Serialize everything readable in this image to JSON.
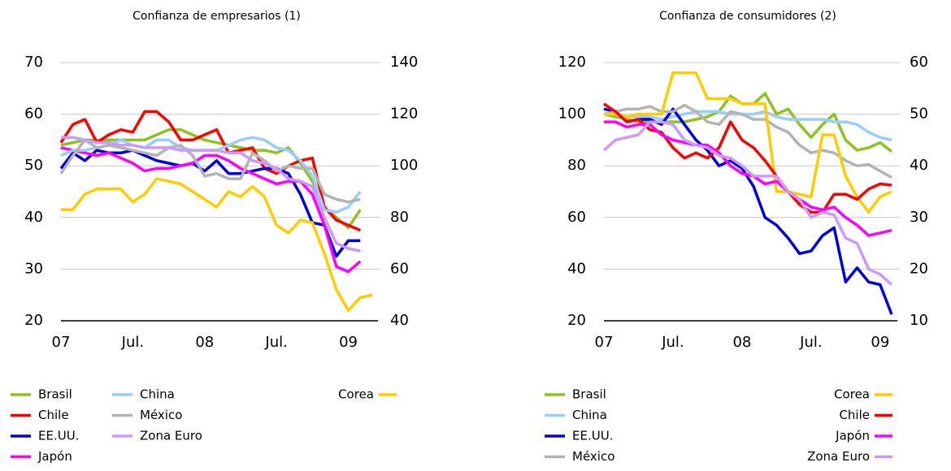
{
  "chart_data": [
    {
      "type": "line",
      "title": "Confianza de empresarios (1)",
      "categories": [
        "07",
        null,
        null,
        null,
        null,
        null,
        "Jul.",
        null,
        null,
        null,
        null,
        null,
        "08",
        null,
        null,
        null,
        null,
        null,
        "Jul.",
        null,
        null,
        null,
        null,
        null,
        "09",
        null,
        null
      ],
      "ylim": [
        20,
        70
      ],
      "yticks": [
        20,
        30,
        40,
        50,
        60,
        70
      ],
      "y2lim": [
        40,
        140
      ],
      "y2ticks": [
        40,
        60,
        80,
        100,
        120,
        140
      ],
      "grid": true,
      "series": [
        {
          "name": "Brasil",
          "color": "#8dc21f",
          "values": [
            54,
            54.5,
            55,
            55,
            55,
            55,
            55,
            55,
            56,
            57,
            57,
            56,
            55,
            54.5,
            54,
            53.5,
            53,
            53,
            52.5,
            53.5,
            50.5,
            47,
            42,
            40,
            38,
            41.5,
            null
          ]
        },
        {
          "name": "Chile",
          "color": "#ff0000",
          "values": [
            54.5,
            58,
            59,
            54.5,
            56,
            57,
            56.5,
            60.5,
            60.5,
            58.5,
            55,
            55,
            56,
            57,
            52.5,
            53,
            53.5,
            49.5,
            48.5,
            50,
            51,
            51.5,
            42,
            39.5,
            38.5,
            37.5,
            null
          ]
        },
        {
          "name": "EE.UU.",
          "color": "#0000e0",
          "values": [
            49.5,
            52.5,
            51,
            53,
            52.5,
            52.5,
            53,
            52,
            51,
            50.5,
            50,
            50.5,
            49,
            51,
            48.5,
            48.5,
            49,
            49.5,
            49.5,
            48.5,
            44.5,
            39,
            38.5,
            32.5,
            35.5,
            35.5,
            null
          ]
        },
        {
          "name": "Japón",
          "color": "#ff00ff",
          "values": [
            53.5,
            53,
            52.5,
            52,
            52.5,
            51.5,
            50.5,
            49,
            49.5,
            49.5,
            50,
            50.5,
            52,
            52,
            51,
            49.5,
            48.5,
            47.5,
            46.5,
            47,
            47,
            44.5,
            38.5,
            30.5,
            29.5,
            31.5,
            null
          ]
        },
        {
          "name": "China",
          "color": "#99ccff",
          "values": [
            52,
            53,
            53,
            53.5,
            54,
            55,
            54,
            53.5,
            55,
            55,
            53.5,
            53,
            53,
            53,
            54,
            55,
            55.5,
            55,
            53.5,
            53,
            51,
            48,
            41.5,
            41,
            42,
            45,
            null
          ]
        },
        {
          "name": "México",
          "color": "#b3b3b3",
          "values": [
            48.5,
            52,
            55,
            53.5,
            54,
            53.5,
            53,
            52.5,
            52,
            53.5,
            54,
            52,
            48,
            48.5,
            47.5,
            47.5,
            52.5,
            51,
            49,
            50,
            49.5,
            49.5,
            44.5,
            43.5,
            43,
            43.5,
            null
          ]
        },
        {
          "name": "Zona Euro",
          "color": "#cc99ff",
          "values": [
            55.5,
            55.5,
            55,
            54.5,
            54.5,
            54,
            54,
            53.5,
            53.5,
            53.5,
            53,
            53,
            53,
            53,
            52.5,
            52.5,
            51,
            50.5,
            49.5,
            47.5,
            47,
            46,
            40,
            35,
            34,
            33.5,
            null
          ]
        },
        {
          "name": "Corea",
          "color": "#ffcc00",
          "axis": "y2",
          "values": [
            83,
            83,
            89,
            91,
            91,
            91,
            86,
            89,
            95,
            94,
            93,
            90,
            87,
            84,
            90,
            88,
            92,
            88,
            77,
            74,
            79,
            78,
            66,
            52,
            44,
            49,
            50
          ]
        }
      ]
    },
    {
      "type": "line",
      "title": "Confianza de consumidores (2)",
      "categories": [
        "07",
        null,
        null,
        null,
        null,
        null,
        "Jul.",
        null,
        null,
        null,
        null,
        null,
        "08",
        null,
        null,
        null,
        null,
        null,
        "Jul.",
        null,
        null,
        null,
        null,
        null,
        "09",
        null
      ],
      "ylim": [
        20,
        120
      ],
      "yticks": [
        20,
        40,
        60,
        80,
        100,
        120
      ],
      "y2lim": [
        10,
        60
      ],
      "y2ticks": [
        10,
        20,
        30,
        40,
        50,
        60
      ],
      "grid": true,
      "series": [
        {
          "name": "Brasil",
          "color": "#8dc21f",
          "values": [
            100,
            99,
            98,
            97,
            97,
            97,
            97,
            97,
            98,
            99,
            101,
            107,
            104,
            104,
            108,
            100,
            102,
            96,
            91,
            96,
            100,
            90,
            86,
            87,
            89,
            85.5
          ]
        },
        {
          "name": "China",
          "color": "#99ccff",
          "values": [
            100,
            100,
            99,
            99,
            99,
            98,
            99,
            100,
            101,
            101,
            101,
            100,
            100,
            100,
            101,
            99,
            98,
            98,
            98,
            98,
            97,
            97,
            96,
            93,
            91,
            90
          ]
        },
        {
          "name": "EE.UU.",
          "color": "#0000e0",
          "values": [
            102,
            101,
            97,
            98,
            98,
            96,
            102,
            96,
            90,
            86,
            80,
            82,
            79,
            72,
            60,
            57,
            52,
            46,
            47,
            53,
            56,
            35,
            40.5,
            35,
            34,
            22.5
          ]
        },
        {
          "name": "México",
          "color": "#b3b3b3",
          "values": [
            100,
            101,
            102,
            102,
            103,
            101,
            101,
            103.5,
            101,
            97,
            96,
            101,
            100,
            98,
            98,
            95,
            93,
            88,
            85,
            86,
            85,
            82,
            80,
            80.5,
            78,
            75.5
          ]
        },
        {
          "name": "Corea",
          "color": "#ffcc00",
          "axis": "y2",
          "values": [
            50,
            50,
            49.5,
            50,
            50,
            50,
            58,
            58,
            58,
            53,
            53,
            53,
            52,
            52,
            52,
            35,
            35,
            34.5,
            34,
            46,
            46,
            38,
            34,
            31,
            34,
            35
          ]
        },
        {
          "name": "Chile",
          "color": "#ff0000",
          "axis": "y2",
          "values": [
            52,
            50.5,
            48.5,
            49,
            47,
            46.5,
            43.5,
            41.5,
            42.5,
            41.5,
            43.5,
            48.5,
            45,
            43.5,
            41,
            38,
            35,
            32.5,
            31,
            31,
            34.5,
            34.5,
            33.5,
            35.5,
            36.5,
            36.25
          ]
        },
        {
          "name": "Japón",
          "color": "#ff00ff",
          "axis": "y2",
          "values": [
            48.5,
            48.5,
            47.5,
            48,
            48,
            46,
            45,
            44.5,
            44,
            44,
            42.5,
            40,
            38.5,
            38,
            36.5,
            37,
            35,
            33.5,
            32,
            31.5,
            32,
            30,
            28.5,
            26.5,
            27,
            27.5
          ]
        },
        {
          "name": "Zona Euro",
          "color": "#cc99ff",
          "axis": "y2",
          "values": [
            43,
            45,
            45.5,
            46,
            48.5,
            48.5,
            48,
            45,
            44,
            43.5,
            42,
            41.5,
            40,
            38,
            38,
            38,
            35,
            33.5,
            30,
            31,
            30.5,
            26,
            25,
            20,
            19,
            17
          ]
        }
      ]
    }
  ]
}
